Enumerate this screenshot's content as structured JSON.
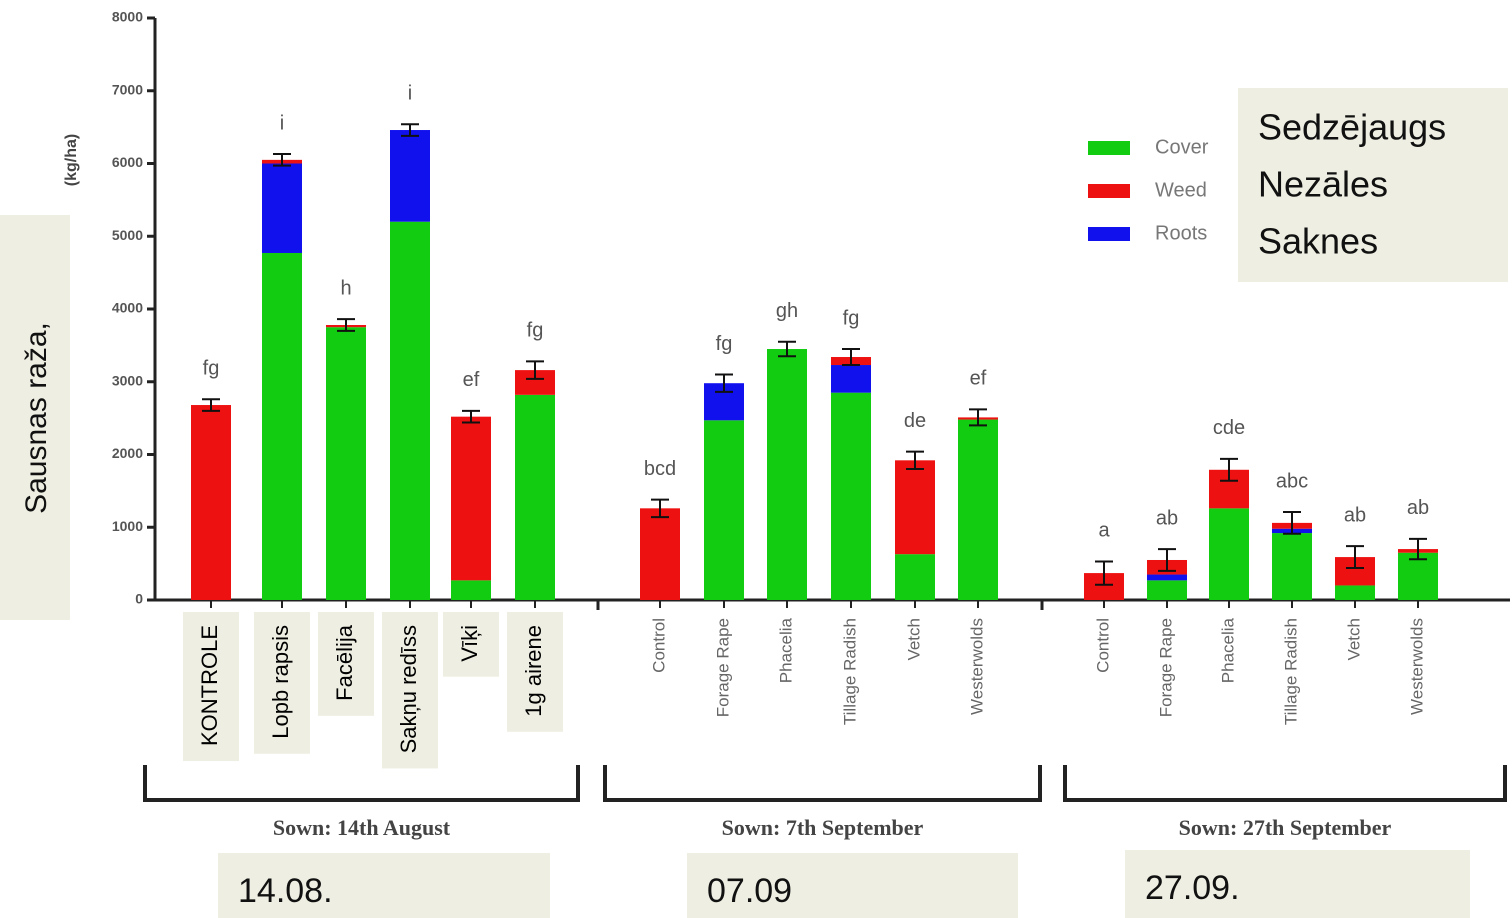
{
  "chart_data": {
    "type": "stacked_bar",
    "y_axis_title": "(kg/ha)",
    "y_axis_overlay": "Sausnas raža,",
    "ylim": [
      0,
      8000
    ],
    "yticks": [
      0,
      1000,
      2000,
      3000,
      4000,
      5000,
      6000,
      7000,
      8000
    ],
    "categories": [
      "KONTROLE",
      "Lopb rapsis",
      "Facēlija",
      "Sakņu redīss",
      "Vīķi",
      "1g airene",
      "Control",
      "Forage Rape",
      "Phacelia",
      "Tillage Radish",
      "Vetch",
      "Westerwolds",
      "Control",
      "Forage Rape",
      "Phacelia",
      "Tillage Radish",
      "Vetch",
      "Westerwolds"
    ],
    "series": [
      {
        "name": "Sedzējaugs",
        "legend_label": "Cover",
        "color": "#11cc11",
        "values": [
          0,
          4770,
          3750,
          5200,
          270,
          2820,
          0,
          2470,
          3450,
          2850,
          630,
          2480,
          0,
          270,
          1260,
          920,
          200,
          650
        ]
      },
      {
        "name": "Nezāles",
        "legend_label": "Weed",
        "color": "#ee1111",
        "values": [
          2680,
          50,
          30,
          0,
          2250,
          340,
          1260,
          0,
          0,
          110,
          1290,
          30,
          370,
          200,
          530,
          80,
          390,
          50
        ]
      },
      {
        "name": "Saknes",
        "legend_label": "Roots",
        "color": "#1111ee",
        "values": [
          0,
          1230,
          0,
          1260,
          0,
          0,
          0,
          510,
          0,
          380,
          0,
          0,
          0,
          80,
          0,
          60,
          0,
          0
        ]
      }
    ],
    "errors": [
      80,
      80,
      80,
      80,
      80,
      120,
      120,
      120,
      100,
      110,
      120,
      110,
      160,
      150,
      150,
      150,
      150,
      140
    ],
    "significance_labels": [
      "fg",
      "i",
      "h",
      "i",
      "ef",
      "fg",
      "bcd",
      "fg",
      "gh",
      "fg",
      "de",
      "ef",
      "a",
      "ab",
      "cde",
      "abc",
      "ab",
      "ab"
    ],
    "groups": [
      {
        "label": "Sown: 14th August",
        "overlay": "14.08."
      },
      {
        "label": "Sown: 7th September",
        "overlay": "07.09"
      },
      {
        "label": "Sown: 27th September",
        "overlay": "27.09."
      }
    ]
  }
}
